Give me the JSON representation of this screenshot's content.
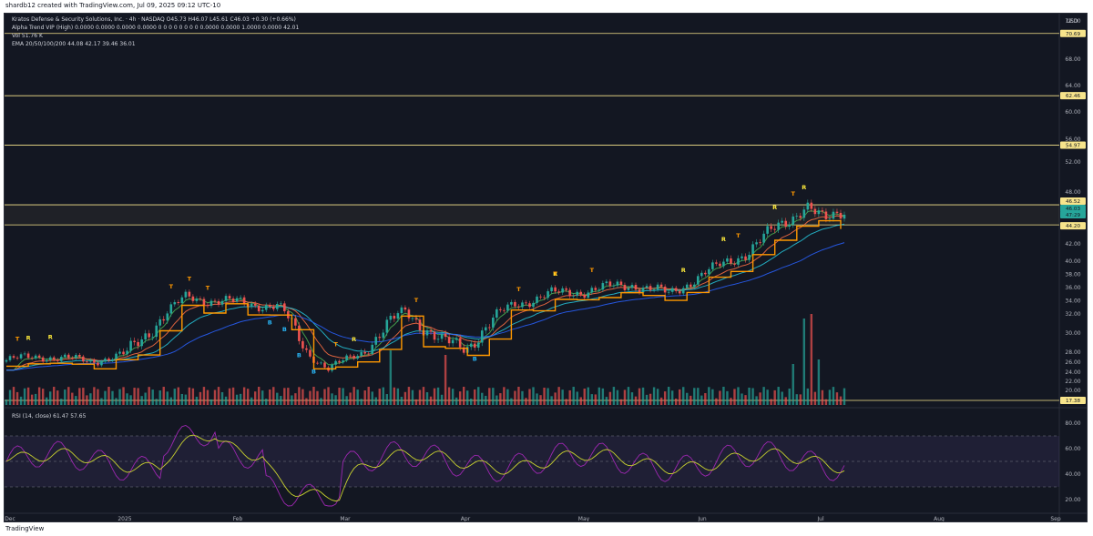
{
  "caption": "shardb12 created with TradingView.com, Jul 09, 2025 09:12 UTC-10",
  "legend": {
    "line1": "Kratos Defense & Security Solutions, Inc. · 4h · NASDAQ  O45.73 H46.07 L45.61 C46.03 +0.30 (+0.66%)",
    "line2": "Alpha Trend VIP (High)  0.0000  0.0000  0.0000  0.0000  0 0 0 0 0 0 0 0  0.0000  0.0000  1.0000  0.0000  42.01",
    "line3": "Vol  51.76 K",
    "line4": "EMA 20/50/100/200  44.08  42.17  39.46  36.01",
    "rsi": "RSI (14, close)  61.47  57.65"
  },
  "currency": "USD",
  "footer": "TradingView",
  "colors": {
    "bg": "#131722",
    "up": "#26a69a",
    "down": "#ef5350",
    "sr": "#f7e48b",
    "ema20": "#4caf50",
    "ema50": "#ff7043",
    "ema100": "#26c6da",
    "ema200": "#2962ff",
    "rsi": "#9c27b0",
    "rsi_ma": "#c9d22f"
  },
  "chart_data": [
    {
      "type": "line",
      "title": "Kratos Defense & Security Solutions, Inc. · 4h · NASDAQ",
      "x_ticks": [
        "Dec",
        "2025",
        "Feb",
        "Mar",
        "Apr",
        "May",
        "Jun",
        "Jul",
        "Aug",
        "Sep"
      ],
      "y_ticks": [
        20.0,
        22.0,
        24.0,
        26.0,
        28.0,
        30.0,
        32.0,
        34.0,
        36.0,
        38.0,
        40.0,
        42.0,
        44.0,
        48.0,
        52.0,
        56.0,
        60.0,
        64.0,
        68.0,
        72.0
      ],
      "ylim": [
        16,
        74
      ],
      "close_series": [
        {
          "x": "Dec",
          "y": 26.4
        },
        {
          "x": "Dec-mid",
          "y": 27.2
        },
        {
          "x": "Dec-end",
          "y": 26.2
        },
        {
          "x": "2025",
          "y": 27.5
        },
        {
          "x": "Jan-mid",
          "y": 34.5
        },
        {
          "x": "Jan-end",
          "y": 33.6
        },
        {
          "x": "Feb",
          "y": 33.2
        },
        {
          "x": "Feb-mid",
          "y": 27.6
        },
        {
          "x": "Feb-end",
          "y": 24.6
        },
        {
          "x": "Mar",
          "y": 26.5
        },
        {
          "x": "Mar-mid",
          "y": 32.5
        },
        {
          "x": "Mar-end",
          "y": 29.0
        },
        {
          "x": "Apr",
          "y": 28.5
        },
        {
          "x": "Apr-mid",
          "y": 33.5
        },
        {
          "x": "Apr-end",
          "y": 35.0
        },
        {
          "x": "May",
          "y": 35.5
        },
        {
          "x": "May-mid",
          "y": 36.5
        },
        {
          "x": "May-end",
          "y": 35.0
        },
        {
          "x": "Jun",
          "y": 38.0
        },
        {
          "x": "Jun-mid",
          "y": 41.5
        },
        {
          "x": "Jun-end",
          "y": 46.5
        },
        {
          "x": "Jul",
          "y": 44.5
        },
        {
          "x": "Jul-9",
          "y": 46.03
        }
      ],
      "horizontal_levels": [
        70.69,
        62.46,
        54.97,
        46.52,
        44.2,
        17.38
      ],
      "price_labels": [
        "70.69",
        "62.46",
        "54.97",
        "46.52",
        "46.03",
        "47:29",
        "44.20",
        "17.38"
      ],
      "marker_labels": [
        "R",
        "T",
        "B"
      ]
    },
    {
      "type": "line",
      "title": "RSI (14, close)",
      "y_ticks": [
        20.0,
        40.0,
        60.0,
        80.0
      ],
      "ylim": [
        10,
        90
      ],
      "last_values": {
        "rsi": 61.47,
        "rsi_ma": 57.65
      }
    }
  ]
}
